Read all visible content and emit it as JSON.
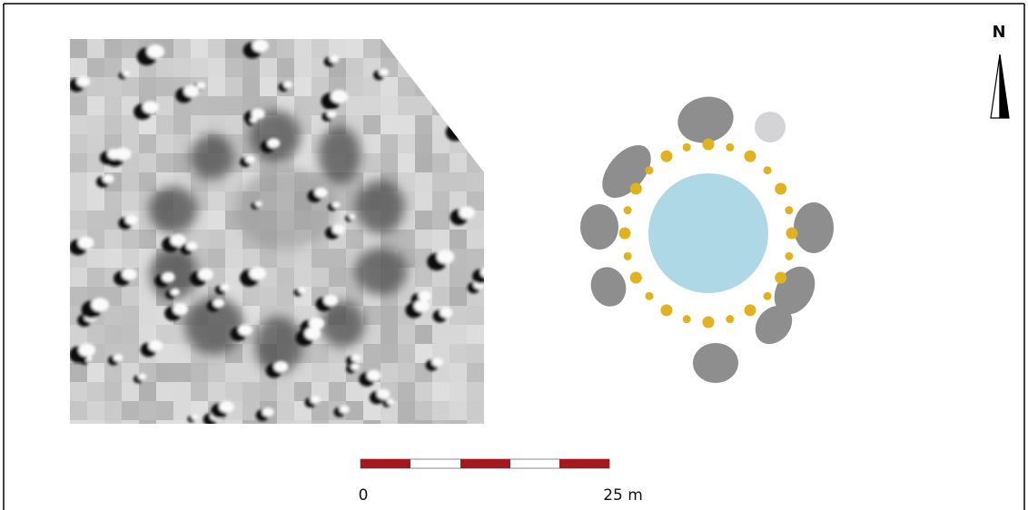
{
  "north_arrow": {
    "label": "N"
  },
  "scale_bar": {
    "start_label": "0",
    "end_label": "25 m"
  }
}
